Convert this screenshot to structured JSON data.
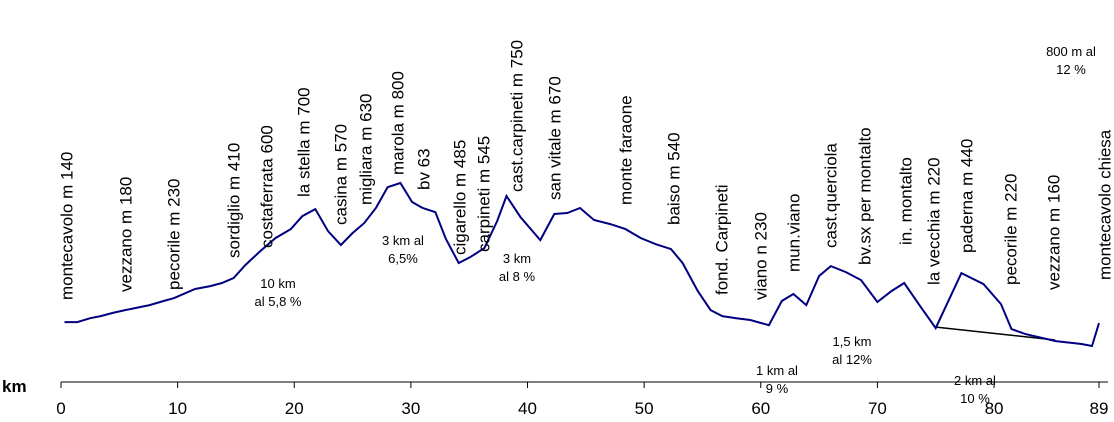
{
  "chart_data": {
    "type": "line",
    "x_label": "km",
    "xlim": [
      0,
      89
    ],
    "xticks": [
      0,
      10,
      20,
      30,
      40,
      50,
      60,
      70,
      80,
      89
    ],
    "ylim": [
      -150,
      1500
    ],
    "color": "#000080",
    "x": [
      0.3,
      1.4,
      2.5,
      3.4,
      4.4,
      5.5,
      6.4,
      7.6,
      8.8,
      9.7,
      11.5,
      12.8,
      13.8,
      14.8,
      15.8,
      17.1,
      18.4,
      19.7,
      20.7,
      21.8,
      22.9,
      24,
      25,
      26,
      27,
      28,
      29.1,
      30.1,
      31,
      32.1,
      33,
      34.1,
      35.1,
      36.3,
      37.4,
      38.2,
      39.4,
      41.1,
      42.3,
      43.4,
      44.5,
      45.7,
      47.1,
      48.4,
      49.7,
      51,
      52.3,
      53.3,
      54.6,
      55.7,
      56.7,
      57.9,
      59.1,
      60.7,
      61.8,
      62.8,
      63.9,
      65,
      66,
      67.3,
      68.6,
      70,
      71.2,
      72.3,
      73.6,
      75,
      77.2,
      79.1,
      80.6,
      81.5,
      82.7,
      85.3,
      87.5,
      88.4,
      89
    ],
    "values": [
      140,
      140,
      159,
      169,
      184,
      198,
      208,
      222,
      242,
      256,
      300,
      314,
      329,
      353,
      416,
      484,
      547,
      590,
      653,
      687,
      580,
      513,
      571,
      619,
      692,
      793,
      813,
      721,
      692,
      672,
      542,
      426,
      455,
      498,
      629,
      750,
      648,
      537,
      663,
      668,
      692,
      634,
      614,
      590,
      547,
      517,
      493,
      426,
      290,
      198,
      169,
      159,
      150,
      125,
      242,
      276,
      222,
      363,
      411,
      382,
      343,
      237,
      290,
      329,
      222,
      111,
      377,
      324,
      227,
      106,
      82,
      48,
      34,
      24,
      135
    ],
    "places": [
      "montecavolo m 140",
      "vezzano m 180",
      "pecorile m 230",
      "sordiglio m 410",
      "costaferrata 600",
      "la stella m 700",
      "casina m 570",
      "migliara m 630",
      "marola m 800",
      "bv 63",
      "cigarello m 485",
      "carpineti m 545",
      "cast.carpineti m 750",
      "san vitale m 670",
      "monte faraone",
      "baiso m 540",
      "fond. Carpineti",
      "viano n 230",
      "mun.viano",
      "cast.querciola",
      "bv.sx per montalto",
      "in. montalto",
      "la vecchia m 220",
      "paderna m 440",
      "pecorile m 220",
      "vezzano m 160",
      "montecavolo chiesa"
    ],
    "notes": [
      [
        "10 km",
        "al 5,8 %"
      ],
      [
        "3 km al",
        "6,5%"
      ],
      [
        "3  km",
        "al 8 %"
      ],
      [
        "1  km al",
        "9 %"
      ],
      [
        "1,5  km",
        "al 12%"
      ],
      [
        "2  km al",
        "10 %"
      ],
      [
        "800 m al",
        "12 %"
      ]
    ]
  }
}
